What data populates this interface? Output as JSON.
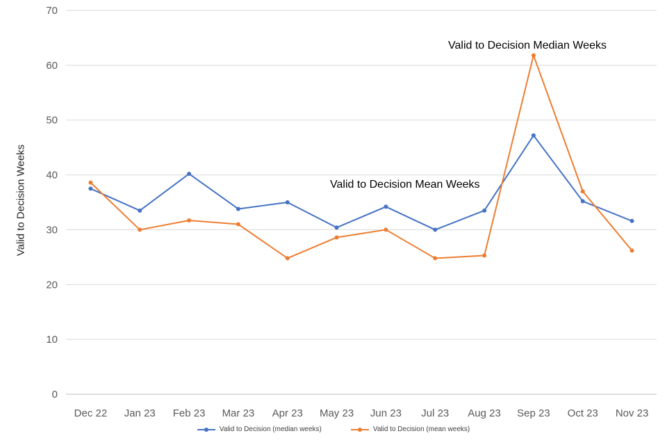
{
  "chart_data": {
    "type": "line",
    "title": "",
    "categories": [
      "Dec 22",
      "Jan 23",
      "Feb 23",
      "Mar 23",
      "Apr 23",
      "May 23",
      "Jun 23",
      "Jul 23",
      "Aug 23",
      "Sep 23",
      "Oct 23",
      "Nov 23"
    ],
    "series": [
      {
        "name": "Valid to Decision (median weeks)",
        "color": "#4472c4",
        "values": [
          37.5,
          33.5,
          40.2,
          33.8,
          35.0,
          30.4,
          34.2,
          30.0,
          33.5,
          47.2,
          35.2,
          31.6
        ]
      },
      {
        "name": "Valid to Decision (mean weeks)",
        "color": "#ed7d31",
        "values": [
          38.6,
          30.0,
          31.7,
          31.0,
          24.8,
          28.6,
          30.0,
          24.8,
          25.3,
          61.8,
          37.0,
          26.2
        ]
      }
    ],
    "xlabel": "",
    "ylabel": "Valid to Decision Weeks",
    "ylim": [
      0,
      70
    ],
    "ytick_step": 10,
    "grid": true,
    "legend_position": "bottom",
    "annotations": [
      {
        "text": "Valid to Decision Median Weeks"
      },
      {
        "text": "Valid to Decision Mean Weeks"
      }
    ]
  },
  "colors": {
    "gridline": "#d9d9d9",
    "axis_line": "#bfbfbf",
    "tick_text": "#595959",
    "annotation_text": "#000000"
  }
}
